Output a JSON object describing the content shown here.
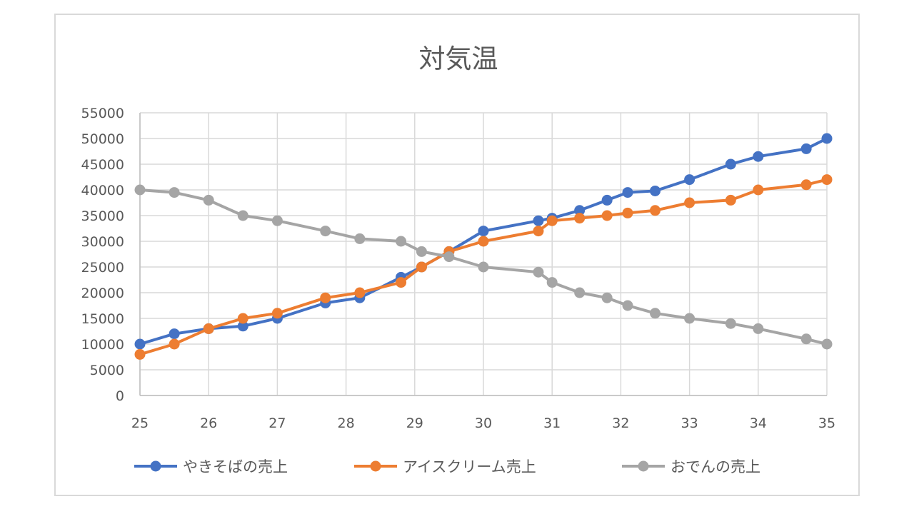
{
  "chart_data": {
    "type": "scatter",
    "title": "対気温",
    "xlabel": "",
    "ylabel": "",
    "xlim": [
      25,
      35
    ],
    "ylim": [
      0,
      55000
    ],
    "x_ticks": [
      "25",
      "26",
      "27",
      "28",
      "29",
      "30",
      "31",
      "32",
      "33",
      "34",
      "35"
    ],
    "y_ticks": [
      "0",
      "5000",
      "10000",
      "15000",
      "20000",
      "25000",
      "30000",
      "35000",
      "40000",
      "45000",
      "50000",
      "55000"
    ],
    "grid": true,
    "legend_position": "bottom",
    "series": [
      {
        "name": "やきそばの売上",
        "color": "#4472C4",
        "points": [
          [
            25,
            10000
          ],
          [
            25.5,
            12000
          ],
          [
            26,
            13000
          ],
          [
            26.5,
            13500
          ],
          [
            27,
            15000
          ],
          [
            27.7,
            18000
          ],
          [
            28.2,
            19000
          ],
          [
            28.8,
            23000
          ],
          [
            29.1,
            25000
          ],
          [
            29.5,
            28000
          ],
          [
            30,
            32000
          ],
          [
            30.8,
            34000
          ],
          [
            31,
            34500
          ],
          [
            31.4,
            36000
          ],
          [
            31.8,
            38000
          ],
          [
            32.1,
            39500
          ],
          [
            32.5,
            39800
          ],
          [
            33,
            42000
          ],
          [
            33.6,
            45000
          ],
          [
            34,
            46500
          ],
          [
            34.7,
            48000
          ],
          [
            35,
            50000
          ]
        ]
      },
      {
        "name": "アイスクリーム売上",
        "color": "#ED7D31",
        "points": [
          [
            25,
            8000
          ],
          [
            25.5,
            10000
          ],
          [
            26,
            13000
          ],
          [
            26.5,
            15000
          ],
          [
            27,
            16000
          ],
          [
            27.7,
            19000
          ],
          [
            28.2,
            20000
          ],
          [
            28.8,
            22000
          ],
          [
            29.1,
            25000
          ],
          [
            29.5,
            28000
          ],
          [
            30,
            30000
          ],
          [
            30.8,
            32000
          ],
          [
            31,
            34000
          ],
          [
            31.4,
            34500
          ],
          [
            31.8,
            35000
          ],
          [
            32.1,
            35500
          ],
          [
            32.5,
            36000
          ],
          [
            33,
            37500
          ],
          [
            33.6,
            38000
          ],
          [
            34,
            40000
          ],
          [
            34.7,
            41000
          ],
          [
            35,
            42000
          ]
        ]
      },
      {
        "name": "おでんの売上",
        "color": "#A5A5A5",
        "points": [
          [
            25,
            40000
          ],
          [
            25.5,
            39500
          ],
          [
            26,
            38000
          ],
          [
            26.5,
            35000
          ],
          [
            27,
            34000
          ],
          [
            27.7,
            32000
          ],
          [
            28.2,
            30500
          ],
          [
            28.8,
            30000
          ],
          [
            29.1,
            28000
          ],
          [
            29.5,
            27000
          ],
          [
            30,
            25000
          ],
          [
            30.8,
            24000
          ],
          [
            31,
            22000
          ],
          [
            31.4,
            20000
          ],
          [
            31.8,
            19000
          ],
          [
            32.1,
            17500
          ],
          [
            32.5,
            16000
          ],
          [
            33,
            15000
          ],
          [
            33.6,
            14000
          ],
          [
            34,
            13000
          ],
          [
            34.7,
            11000
          ],
          [
            35,
            10000
          ]
        ]
      }
    ]
  }
}
